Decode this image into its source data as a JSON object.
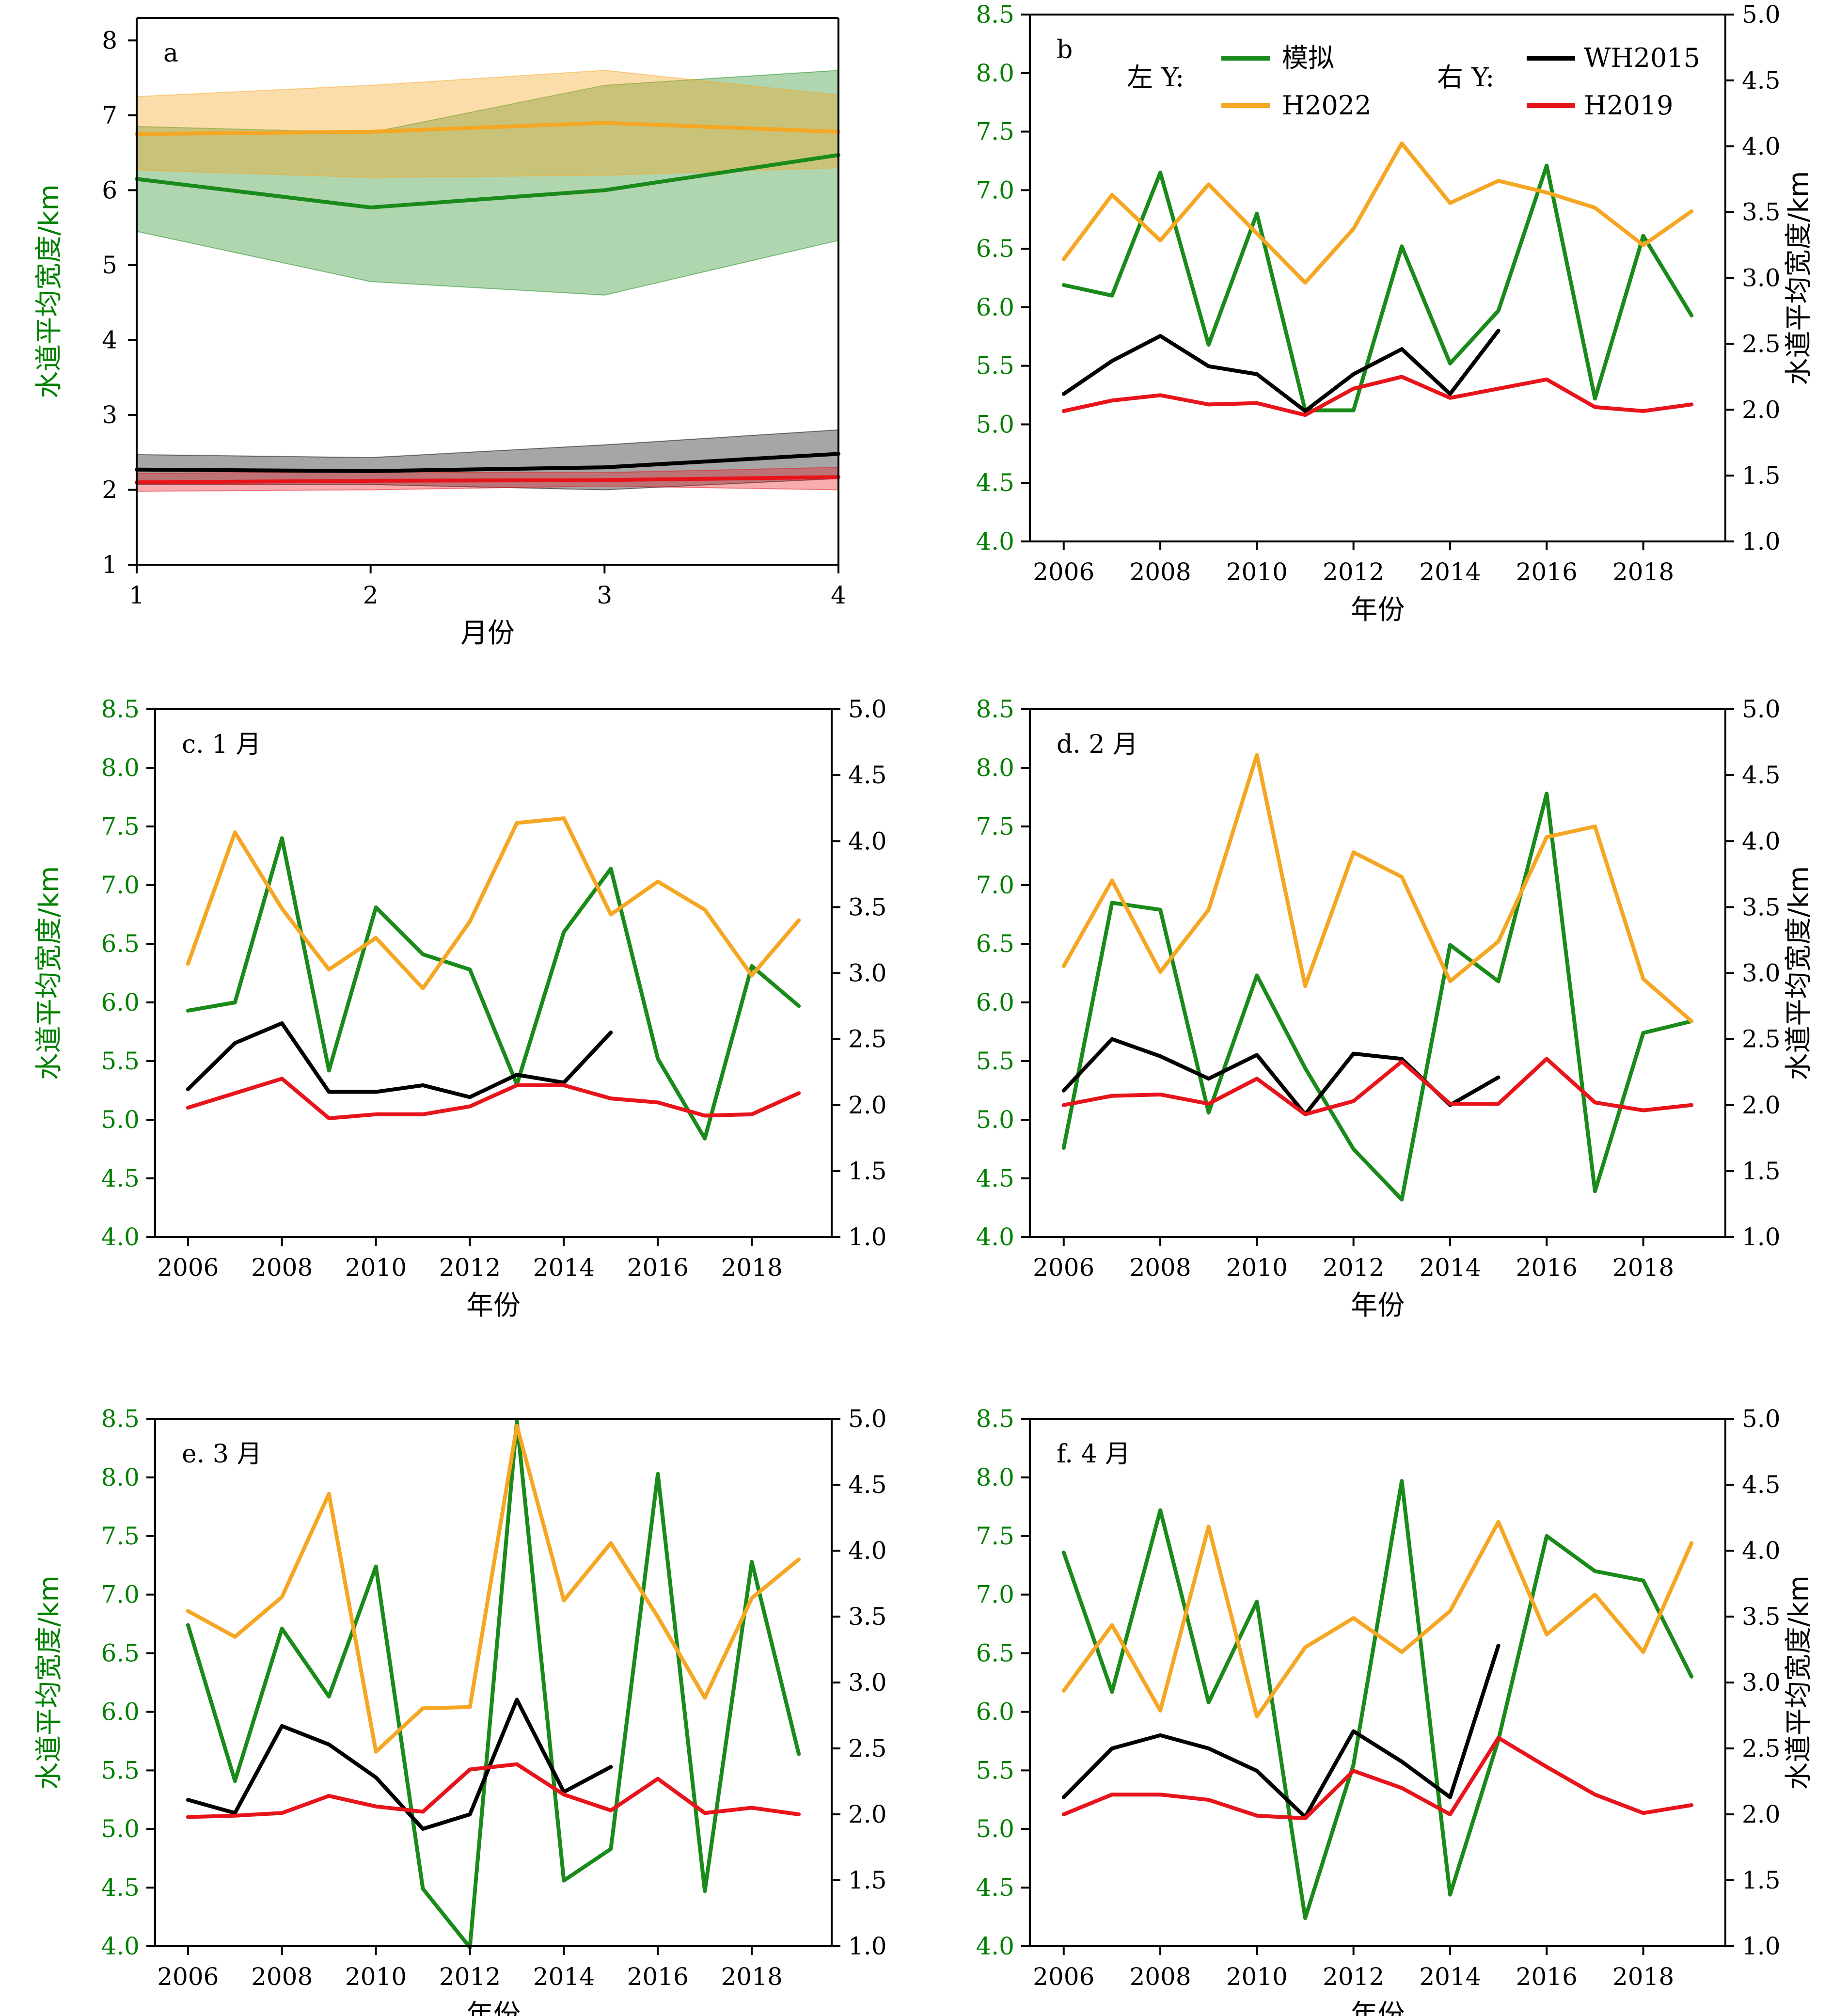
{
  "colors": {
    "sim": "#1a8a1a",
    "h2022": "#f5a623",
    "wh2015": "#000000",
    "h2019": "#e8141c",
    "axis_green": "#008000"
  },
  "legend": {
    "left_title": "左 Y:",
    "right_title": "右 Y:",
    "items": [
      {
        "key": "sim",
        "label": "模拟"
      },
      {
        "key": "h2022",
        "label": "H2022"
      },
      {
        "key": "wh2015",
        "label": "WH2015"
      },
      {
        "key": "h2019",
        "label": "H2019"
      }
    ]
  },
  "chart_data": [
    {
      "id": "a",
      "type": "line",
      "panel_label": "a",
      "xlabel": "月份",
      "ylabel": "水道平均宽度/km",
      "x": [
        1,
        2,
        3,
        4
      ],
      "xlim": [
        1,
        4
      ],
      "ylim": [
        1,
        8.3
      ],
      "yticks": [
        1,
        2,
        3,
        4,
        5,
        6,
        7,
        8
      ],
      "series": [
        {
          "key": "sim",
          "values": [
            6.15,
            5.77,
            6.0,
            6.47
          ],
          "lower": [
            5.45,
            4.78,
            4.6,
            5.33
          ],
          "upper": [
            6.85,
            6.77,
            7.4,
            7.6
          ]
        },
        {
          "key": "h2022",
          "values": [
            6.75,
            6.78,
            6.9,
            6.78
          ],
          "lower": [
            6.27,
            6.17,
            6.2,
            6.3
          ],
          "upper": [
            7.25,
            7.4,
            7.6,
            7.27
          ]
        },
        {
          "key": "wh2015",
          "values": [
            2.27,
            2.25,
            2.3,
            2.48
          ],
          "lower": [
            2.07,
            2.07,
            2.0,
            2.15
          ],
          "upper": [
            2.47,
            2.43,
            2.6,
            2.8
          ]
        },
        {
          "key": "h2019",
          "values": [
            2.1,
            2.12,
            2.13,
            2.17
          ],
          "lower": [
            1.98,
            2.0,
            2.05,
            2.0
          ],
          "upper": [
            2.22,
            2.24,
            2.23,
            2.3
          ]
        }
      ]
    },
    {
      "id": "b",
      "type": "line",
      "panel_label": "b",
      "xlabel": "年份",
      "ylabel_right": "水道平均宽度/km",
      "xlim": [
        2005.3,
        2019.7
      ],
      "xticks": [
        2006,
        2008,
        2010,
        2012,
        2014,
        2016,
        2018
      ],
      "ylim": [
        4.0,
        8.5
      ],
      "ylim_right": [
        1.0,
        5.0
      ],
      "series": [
        {
          "key": "sim",
          "axis": "left",
          "x": [
            2006,
            2007,
            2008,
            2009,
            2010,
            2011,
            2012,
            2013,
            2014,
            2015,
            2016,
            2017,
            2018,
            2019
          ],
          "values": [
            6.19,
            6.1,
            7.15,
            5.68,
            6.8,
            5.12,
            5.12,
            6.52,
            5.52,
            5.97,
            7.21,
            5.22,
            6.61,
            5.93
          ]
        },
        {
          "key": "h2022",
          "axis": "left",
          "x": [
            2006,
            2007,
            2008,
            2009,
            2010,
            2011,
            2012,
            2013,
            2014,
            2015,
            2016,
            2017,
            2018,
            2019
          ],
          "values": [
            6.41,
            6.96,
            6.57,
            7.05,
            6.63,
            6.21,
            6.67,
            7.4,
            6.89,
            7.08,
            6.98,
            6.85,
            6.53,
            6.82
          ]
        },
        {
          "key": "wh2015",
          "axis": "right",
          "x": [
            2006,
            2007,
            2008,
            2009,
            2010,
            2011,
            2012,
            2013,
            2014,
            2015
          ],
          "values": [
            2.12,
            2.37,
            2.56,
            2.33,
            2.27,
            1.99,
            2.27,
            2.46,
            2.12,
            2.6
          ]
        },
        {
          "key": "h2019",
          "axis": "right",
          "x": [
            2006,
            2007,
            2008,
            2009,
            2010,
            2011,
            2012,
            2013,
            2014,
            2015,
            2016,
            2017,
            2018,
            2019
          ],
          "values": [
            1.99,
            2.07,
            2.11,
            2.04,
            2.05,
            1.96,
            2.16,
            2.25,
            2.09,
            2.16,
            2.23,
            2.02,
            1.99,
            2.04
          ]
        }
      ]
    },
    {
      "id": "c",
      "type": "line",
      "panel_label": "c. 1 月",
      "xlabel": "年份",
      "ylabel": "水道平均宽度/km",
      "xlim": [
        2005.3,
        2019.7
      ],
      "xticks": [
        2006,
        2008,
        2010,
        2012,
        2014,
        2016,
        2018
      ],
      "ylim": [
        4.0,
        8.5
      ],
      "ylim_right": [
        1.0,
        5.0
      ],
      "series": [
        {
          "key": "sim",
          "axis": "left",
          "x": [
            2006,
            2007,
            2008,
            2009,
            2010,
            2011,
            2012,
            2013,
            2014,
            2015,
            2016,
            2017,
            2018,
            2019
          ],
          "values": [
            5.93,
            6.0,
            7.4,
            5.42,
            6.81,
            6.41,
            6.28,
            5.3,
            6.6,
            7.14,
            5.52,
            4.84,
            6.31,
            5.97
          ]
        },
        {
          "key": "h2022",
          "axis": "left",
          "x": [
            2006,
            2007,
            2008,
            2009,
            2010,
            2011,
            2012,
            2013,
            2014,
            2015,
            2016,
            2017,
            2018,
            2019
          ],
          "values": [
            6.33,
            7.45,
            6.8,
            6.28,
            6.55,
            6.12,
            6.69,
            7.53,
            7.57,
            6.75,
            7.03,
            6.79,
            6.23,
            6.7
          ]
        },
        {
          "key": "wh2015",
          "axis": "right",
          "x": [
            2006,
            2007,
            2008,
            2009,
            2010,
            2011,
            2012,
            2013,
            2014,
            2015
          ],
          "values": [
            2.12,
            2.47,
            2.62,
            2.1,
            2.1,
            2.15,
            2.06,
            2.23,
            2.17,
            2.55
          ]
        },
        {
          "key": "h2019",
          "axis": "right",
          "x": [
            2006,
            2007,
            2008,
            2009,
            2010,
            2011,
            2012,
            2013,
            2014,
            2015,
            2016,
            2017,
            2018,
            2019
          ],
          "values": [
            1.98,
            2.09,
            2.2,
            1.9,
            1.93,
            1.93,
            1.99,
            2.15,
            2.15,
            2.05,
            2.02,
            1.92,
            1.93,
            2.09
          ]
        }
      ]
    },
    {
      "id": "d",
      "type": "line",
      "panel_label": "d. 2 月",
      "xlabel": "年份",
      "ylabel_right": "水道平均宽度/km",
      "xlim": [
        2005.3,
        2019.7
      ],
      "xticks": [
        2006,
        2008,
        2010,
        2012,
        2014,
        2016,
        2018
      ],
      "ylim": [
        4.0,
        8.5
      ],
      "ylim_right": [
        1.0,
        5.0
      ],
      "series": [
        {
          "key": "sim",
          "axis": "left",
          "x": [
            2006,
            2007,
            2008,
            2009,
            2010,
            2011,
            2012,
            2013,
            2014,
            2015,
            2016,
            2017,
            2018,
            2019
          ],
          "values": [
            4.76,
            6.85,
            6.79,
            5.06,
            6.23,
            5.44,
            4.75,
            4.32,
            6.49,
            6.18,
            7.78,
            4.39,
            5.74,
            5.84
          ]
        },
        {
          "key": "h2022",
          "axis": "left",
          "x": [
            2006,
            2007,
            2008,
            2009,
            2010,
            2011,
            2012,
            2013,
            2014,
            2015,
            2016,
            2017,
            2018,
            2019
          ],
          "values": [
            6.31,
            7.04,
            6.26,
            6.79,
            8.11,
            6.14,
            7.28,
            7.07,
            6.18,
            6.52,
            7.41,
            7.5,
            6.2,
            5.84
          ]
        },
        {
          "key": "wh2015",
          "axis": "right",
          "x": [
            2006,
            2007,
            2008,
            2009,
            2010,
            2011,
            2012,
            2013,
            2014,
            2015
          ],
          "values": [
            2.11,
            2.5,
            2.37,
            2.2,
            2.38,
            1.93,
            2.39,
            2.35,
            2.0,
            2.21
          ]
        },
        {
          "key": "h2019",
          "axis": "right",
          "x": [
            2006,
            2007,
            2008,
            2009,
            2010,
            2011,
            2012,
            2013,
            2014,
            2015,
            2016,
            2017,
            2018,
            2019
          ],
          "values": [
            2.0,
            2.07,
            2.08,
            2.01,
            2.2,
            1.93,
            2.03,
            2.33,
            2.01,
            2.01,
            2.35,
            2.02,
            1.96,
            2.0
          ]
        }
      ]
    },
    {
      "id": "e",
      "type": "line",
      "panel_label": "e. 3 月",
      "xlabel": "年份",
      "ylabel": "水道平均宽度/km",
      "xlim": [
        2005.3,
        2019.7
      ],
      "xticks": [
        2006,
        2008,
        2010,
        2012,
        2014,
        2016,
        2018
      ],
      "ylim": [
        4.0,
        8.5
      ],
      "ylim_right": [
        1.0,
        5.0
      ],
      "series": [
        {
          "key": "sim",
          "axis": "left",
          "x": [
            2006,
            2007,
            2008,
            2009,
            2010,
            2011,
            2012,
            2013,
            2014,
            2015,
            2016,
            2017,
            2018,
            2019
          ],
          "values": [
            6.74,
            5.41,
            6.71,
            6.13,
            7.24,
            4.49,
            3.99,
            8.48,
            4.56,
            4.83,
            8.03,
            4.47,
            7.28,
            5.64
          ]
        },
        {
          "key": "h2022",
          "axis": "left",
          "x": [
            2006,
            2007,
            2008,
            2009,
            2010,
            2011,
            2012,
            2013,
            2014,
            2015,
            2016,
            2017,
            2018,
            2019
          ],
          "values": [
            6.86,
            6.64,
            6.98,
            7.86,
            5.66,
            6.03,
            6.04,
            8.44,
            6.95,
            7.44,
            6.81,
            6.12,
            6.97,
            7.3
          ]
        },
        {
          "key": "wh2015",
          "axis": "right",
          "x": [
            2006,
            2007,
            2008,
            2009,
            2010,
            2011,
            2012,
            2013,
            2014,
            2015
          ],
          "values": [
            2.11,
            2.01,
            2.67,
            2.53,
            2.28,
            1.89,
            2.0,
            2.87,
            2.17,
            2.36
          ]
        },
        {
          "key": "h2019",
          "axis": "right",
          "x": [
            2006,
            2007,
            2008,
            2009,
            2010,
            2011,
            2012,
            2013,
            2014,
            2015,
            2016,
            2017,
            2018,
            2019
          ],
          "values": [
            1.98,
            1.99,
            2.01,
            2.14,
            2.06,
            2.02,
            2.34,
            2.38,
            2.15,
            2.03,
            2.27,
            2.01,
            2.05,
            2.0
          ]
        }
      ]
    },
    {
      "id": "f",
      "type": "line",
      "panel_label": "f. 4 月",
      "xlabel": "年份",
      "ylabel_right": "水道平均宽度/km",
      "xlim": [
        2005.3,
        2019.7
      ],
      "xticks": [
        2006,
        2008,
        2010,
        2012,
        2014,
        2016,
        2018
      ],
      "ylim": [
        4.0,
        8.5
      ],
      "ylim_right": [
        1.0,
        5.0
      ],
      "series": [
        {
          "key": "sim",
          "axis": "left",
          "x": [
            2006,
            2007,
            2008,
            2009,
            2010,
            2011,
            2012,
            2013,
            2014,
            2015,
            2016,
            2017,
            2018,
            2019
          ],
          "values": [
            7.36,
            6.17,
            7.72,
            6.08,
            6.94,
            4.24,
            5.55,
            7.97,
            4.44,
            5.76,
            7.5,
            7.2,
            7.12,
            6.3
          ]
        },
        {
          "key": "h2022",
          "axis": "left",
          "x": [
            2006,
            2007,
            2008,
            2009,
            2010,
            2011,
            2012,
            2013,
            2014,
            2015,
            2016,
            2017,
            2018,
            2019
          ],
          "values": [
            6.18,
            6.74,
            6.01,
            7.58,
            5.96,
            6.55,
            6.8,
            6.51,
            6.86,
            7.62,
            6.66,
            7.0,
            6.51,
            7.44
          ]
        },
        {
          "key": "wh2015",
          "axis": "right",
          "x": [
            2006,
            2007,
            2008,
            2009,
            2010,
            2011,
            2012,
            2013,
            2014,
            2015
          ],
          "values": [
            2.13,
            2.5,
            2.6,
            2.5,
            2.33,
            1.98,
            2.63,
            2.4,
            2.13,
            3.28
          ]
        },
        {
          "key": "h2019",
          "axis": "right",
          "x": [
            2006,
            2007,
            2008,
            2009,
            2010,
            2011,
            2012,
            2013,
            2014,
            2015,
            2016,
            2017,
            2018,
            2019
          ],
          "values": [
            2.0,
            2.15,
            2.15,
            2.11,
            1.99,
            1.97,
            2.33,
            2.2,
            2.0,
            2.58,
            2.36,
            2.15,
            2.01,
            2.07
          ]
        }
      ]
    }
  ]
}
